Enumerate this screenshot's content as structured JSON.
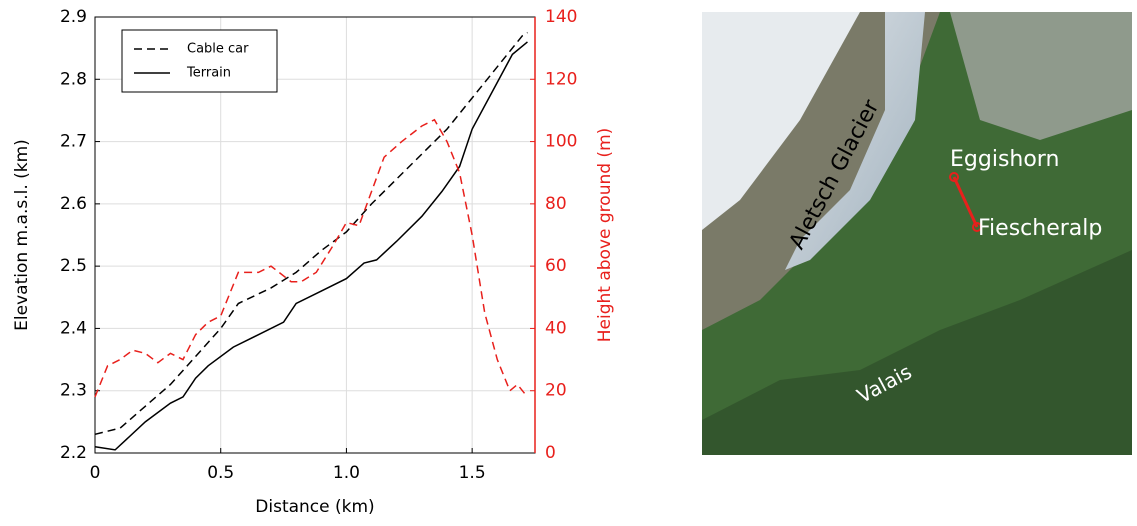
{
  "chart_data": {
    "type": "line",
    "xlabel": "Distance (km)",
    "ylabel": "Elevation m.a.s.l. (km)",
    "y2label": "Height above ground (m)",
    "xlim": [
      0,
      1.75
    ],
    "xticks": [
      0,
      0.5,
      {
        "value": 1,
        "label": "1.0"
      },
      1.5
    ],
    "ylim": [
      2.2,
      2.9
    ],
    "yticks": [
      2.2,
      2.3,
      2.4,
      2.5,
      2.6,
      2.7,
      2.8,
      2.9
    ],
    "y2lim": [
      0,
      140
    ],
    "y2ticks": [
      0,
      20,
      40,
      60,
      80,
      100,
      120,
      140
    ],
    "y2color": "#e8201c",
    "grid": true,
    "legend": "upper left",
    "series": [
      {
        "name": "Cable car",
        "color": "#000000",
        "style": "dashed",
        "x": [
          0,
          0.1,
          0.2,
          0.3,
          0.4,
          0.5,
          0.57,
          0.7,
          0.8,
          0.9,
          1.0,
          1.1,
          1.2,
          1.3,
          1.4,
          1.5,
          1.6,
          1.7,
          1.72
        ],
        "values": [
          2.23,
          2.24,
          2.275,
          2.31,
          2.355,
          2.4,
          2.44,
          2.465,
          2.49,
          2.525,
          2.555,
          2.6,
          2.64,
          2.68,
          2.72,
          2.77,
          2.82,
          2.87,
          2.875
        ]
      },
      {
        "name": "Terrain",
        "color": "#000000",
        "style": "solid",
        "x": [
          0,
          0.08,
          0.2,
          0.3,
          0.35,
          0.4,
          0.45,
          0.55,
          0.65,
          0.75,
          0.8,
          0.9,
          1.0,
          1.07,
          1.12,
          1.2,
          1.3,
          1.38,
          1.45,
          1.5,
          1.58,
          1.66,
          1.72
        ],
        "values": [
          2.21,
          2.205,
          2.25,
          2.28,
          2.29,
          2.32,
          2.34,
          2.37,
          2.39,
          2.41,
          2.44,
          2.46,
          2.48,
          2.505,
          2.51,
          2.54,
          2.58,
          2.62,
          2.66,
          2.72,
          2.78,
          2.84,
          2.86
        ]
      },
      {
        "color": "#e8201c",
        "style": "dashed",
        "axis": "y2",
        "x": [
          0,
          0.05,
          0.1,
          0.15,
          0.2,
          0.25,
          0.3,
          0.35,
          0.4,
          0.45,
          0.5,
          0.57,
          0.6,
          0.65,
          0.7,
          0.78,
          0.82,
          0.88,
          0.95,
          1.0,
          1.05,
          1.1,
          1.15,
          1.22,
          1.3,
          1.35,
          1.4,
          1.45,
          1.5,
          1.55,
          1.6,
          1.65,
          1.68,
          1.72
        ],
        "values": [
          18,
          28,
          30,
          33,
          32,
          29,
          32,
          30,
          38,
          42,
          44,
          58,
          58,
          58,
          60,
          55,
          55,
          58,
          67,
          74,
          73,
          84,
          95,
          100,
          105,
          107,
          100,
          90,
          70,
          45,
          30,
          20,
          22,
          18
        ]
      }
    ]
  },
  "map": {
    "labels": [
      "Aletsch Glacier",
      "Eggishorn",
      "Fiescheralp",
      "Valais"
    ]
  }
}
